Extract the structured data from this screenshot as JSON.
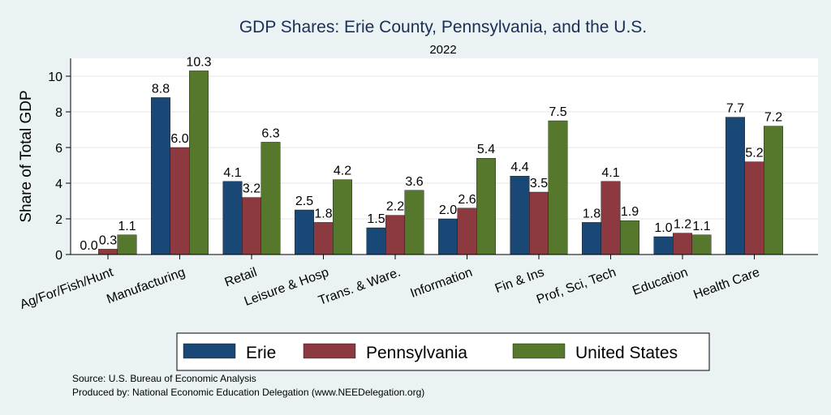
{
  "chart_data": {
    "type": "bar",
    "title": "GDP Shares: Erie County, Pennsylvania, and the U.S.",
    "subtitle": "2022",
    "ylabel": "Share of Total GDP",
    "xlabel": "",
    "ylim": [
      0,
      11
    ],
    "yticks": [
      0,
      2,
      4,
      6,
      8,
      10
    ],
    "grid": true,
    "legend_position": "bottom",
    "categories": [
      "Ag/For/Fish/Hunt",
      "Manufacturing",
      "Retail",
      "Leisure & Hosp",
      "Trans. & Ware.",
      "Information",
      "Fin & Ins",
      "Prof, Sci, Tech",
      "Education",
      "Health Care"
    ],
    "series": [
      {
        "name": "Erie",
        "color": "#1a4876",
        "values": [
          0.0,
          8.8,
          4.1,
          2.5,
          1.5,
          2.0,
          4.4,
          1.8,
          1.0,
          7.7
        ],
        "labels": [
          "0.0",
          "8.8",
          "4.1",
          "2.5",
          "1.5",
          "2.0",
          "4.4",
          "1.8",
          "1.0",
          "7.7"
        ]
      },
      {
        "name": "Pennsylvania",
        "color": "#8c3a3f",
        "values": [
          0.3,
          6.0,
          3.2,
          1.8,
          2.2,
          2.6,
          3.5,
          4.1,
          1.2,
          5.2
        ],
        "labels": [
          "0.3",
          "6.0",
          "3.2",
          "1.8",
          "2.2",
          "2.6",
          "3.5",
          "4.1",
          "1.2",
          "5.2"
        ]
      },
      {
        "name": "United States",
        "color": "#55782d",
        "values": [
          1.1,
          10.3,
          6.3,
          4.2,
          3.6,
          5.4,
          7.5,
          1.9,
          1.1,
          7.2
        ],
        "labels": [
          "1.1",
          "10.3",
          "6.3",
          "4.2",
          "3.6",
          "5.4",
          "7.5",
          "1.9",
          "1.1",
          "7.2"
        ]
      }
    ]
  },
  "footer": {
    "source": "Source: U.S. Bureau of Economic Analysis",
    "produced_by": "Produced by: National Economic Education Delegation (www.NEEDelegation.org)"
  }
}
